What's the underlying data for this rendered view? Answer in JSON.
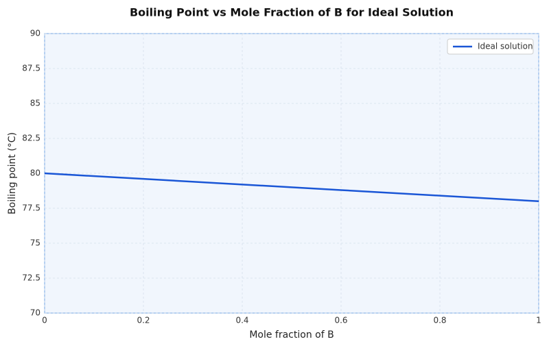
{
  "chart_data": {
    "type": "line",
    "title": "Boiling Point vs Mole Fraction of B for Ideal Solution",
    "x_label": "Mole fraction of B",
    "y_label": "Boiling point (°C)",
    "x": [
      0,
      0.2,
      0.4,
      0.6,
      0.8,
      1
    ],
    "series": [
      {
        "name": "Ideal solution",
        "color": "#1a56d6",
        "values": [
          80,
          79.6,
          79.2,
          78.8,
          78.4,
          78
        ]
      }
    ],
    "xlim": [
      0,
      1
    ],
    "xticks": [
      0,
      0.2,
      0.4,
      0.6,
      0.8,
      1
    ],
    "ylim": [
      70,
      90
    ],
    "yticks": [
      70,
      72.5,
      75,
      77.5,
      80,
      82.5,
      85,
      87.5,
      90
    ],
    "grid": true,
    "legend": "upper right"
  }
}
